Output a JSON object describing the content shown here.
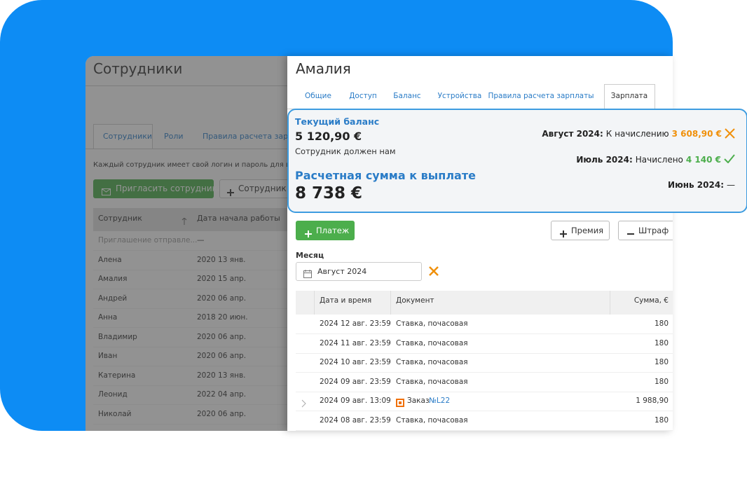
{
  "left_panel": {
    "title": "Сотрудники",
    "tabs": [
      "Сотрудники",
      "Роли",
      "Правила расчета зарпла"
    ],
    "description": "Каждый сотрудник имеет свой логин и пароль для входа",
    "invite_button": "Пригласить сотрудника",
    "add_button": "Сотрудник",
    "table": {
      "headers": [
        "Сотрудник",
        "Дата начала работы"
      ],
      "rows": [
        [
          "Приглашение отправле...",
          "—"
        ],
        [
          "Алена",
          "2020 13 янв."
        ],
        [
          "Амалия",
          "2020 15 апр."
        ],
        [
          "Андрей",
          "2020 06 апр."
        ],
        [
          "Анна",
          "2018 20 июн."
        ],
        [
          "Владимир",
          "2020 06 апр."
        ],
        [
          "Иван",
          "2020 06 апр."
        ],
        [
          "Катерина",
          "2020 13 янв."
        ],
        [
          "Леонид",
          "2022 04 апр."
        ],
        [
          "Николай",
          "2020 06 апр."
        ]
      ]
    }
  },
  "employee_panel": {
    "name": "Амалия",
    "tabs": [
      "Общие",
      "Доступ",
      "Баланс",
      "Устройства",
      "Правила расчета зарплаты",
      "Зарплата"
    ],
    "balance": {
      "current_label": "Текущий баланс",
      "current_value": "5 120,90 €",
      "current_note": "Сотрудник должен нам",
      "payout_label": "Расчетная сумма к выплате",
      "payout_value": "8 738 €"
    },
    "months": [
      {
        "month": "Август 2024:",
        "status": "К начислению",
        "amount": "3 608,90 €"
      },
      {
        "month": "Июль 2024:",
        "status": "Начислено",
        "amount": "4 140 €"
      },
      {
        "month": "Июнь 2024:",
        "status": "—"
      }
    ],
    "buttons": {
      "payment": "Платеж",
      "bonus": "Премия",
      "fine": "Штраф"
    },
    "month_field": {
      "label": "Месяц",
      "value": "Август 2024"
    },
    "table": {
      "headers": [
        "Дата и время",
        "Документ",
        "Сумма, €"
      ],
      "rows": [
        {
          "date": "2024 12 авг. 23:59",
          "document": "Ставка, почасовая",
          "amount": "180"
        },
        {
          "date": "2024 11 авг. 23:59",
          "document": "Ставка, почасовая",
          "amount": "180"
        },
        {
          "date": "2024 10 авг. 23:59",
          "document": "Ставка, почасовая",
          "amount": "180"
        },
        {
          "date": "2024 09 авг. 23:59",
          "document": "Ставка, почасовая",
          "amount": "180"
        },
        {
          "date": "2024 09 авг. 13:09",
          "document": "Заказ",
          "document_link": "№L22",
          "amount": "1 988,90"
        },
        {
          "date": "2024 08 авг. 23:59",
          "document": "Ставка, почасовая",
          "amount": "180"
        }
      ]
    }
  }
}
